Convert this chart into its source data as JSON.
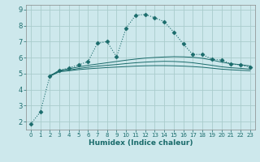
{
  "xlabel": "Humidex (Indice chaleur)",
  "bg_color": "#cde8ec",
  "grid_color": "#b8d8dc",
  "line_color": "#1a6b6b",
  "xlim": [
    -0.5,
    23.5
  ],
  "ylim": [
    1.5,
    9.3
  ],
  "xticks": [
    0,
    1,
    2,
    3,
    4,
    5,
    6,
    7,
    8,
    9,
    10,
    11,
    12,
    13,
    14,
    15,
    16,
    17,
    18,
    19,
    20,
    21,
    22,
    23
  ],
  "yticks": [
    2,
    3,
    4,
    5,
    6,
    7,
    8,
    9
  ],
  "line1_x": [
    0,
    1,
    2,
    3,
    4,
    5,
    6,
    7,
    8,
    9,
    10,
    11,
    12,
    13,
    14,
    15,
    16,
    17,
    18,
    19,
    20,
    21,
    22,
    23
  ],
  "line1_y": [
    1.85,
    2.6,
    4.85,
    5.2,
    5.35,
    5.55,
    5.75,
    6.9,
    7.0,
    6.05,
    7.85,
    8.65,
    8.7,
    8.5,
    8.25,
    7.6,
    6.85,
    6.2,
    6.2,
    5.9,
    5.85,
    5.6,
    5.55,
    5.4
  ],
  "line2_x": [
    2,
    3,
    4,
    5,
    6,
    7,
    8,
    9,
    10,
    11,
    12,
    13,
    14,
    15,
    16,
    17,
    18,
    19,
    20,
    21,
    22,
    23
  ],
  "line2_y": [
    4.87,
    5.2,
    5.3,
    5.42,
    5.52,
    5.6,
    5.68,
    5.76,
    5.84,
    5.91,
    5.97,
    6.01,
    6.04,
    6.06,
    6.05,
    6.02,
    5.96,
    5.85,
    5.72,
    5.62,
    5.56,
    5.48
  ],
  "line3_x": [
    2,
    3,
    4,
    5,
    6,
    7,
    8,
    9,
    10,
    11,
    12,
    13,
    14,
    15,
    16,
    17,
    18,
    19,
    20,
    21,
    22,
    23
  ],
  "line3_y": [
    4.85,
    5.15,
    5.22,
    5.32,
    5.4,
    5.47,
    5.52,
    5.57,
    5.63,
    5.68,
    5.72,
    5.75,
    5.77,
    5.76,
    5.73,
    5.68,
    5.6,
    5.52,
    5.43,
    5.37,
    5.33,
    5.28
  ],
  "line4_x": [
    2,
    3,
    4,
    5,
    6,
    7,
    8,
    9,
    10,
    11,
    12,
    13,
    14,
    15,
    16,
    17,
    18,
    19,
    20,
    21,
    22,
    23
  ],
  "line4_y": [
    4.83,
    5.12,
    5.18,
    5.25,
    5.3,
    5.34,
    5.38,
    5.41,
    5.44,
    5.47,
    5.49,
    5.5,
    5.5,
    5.49,
    5.47,
    5.44,
    5.4,
    5.34,
    5.28,
    5.24,
    5.21,
    5.18
  ]
}
